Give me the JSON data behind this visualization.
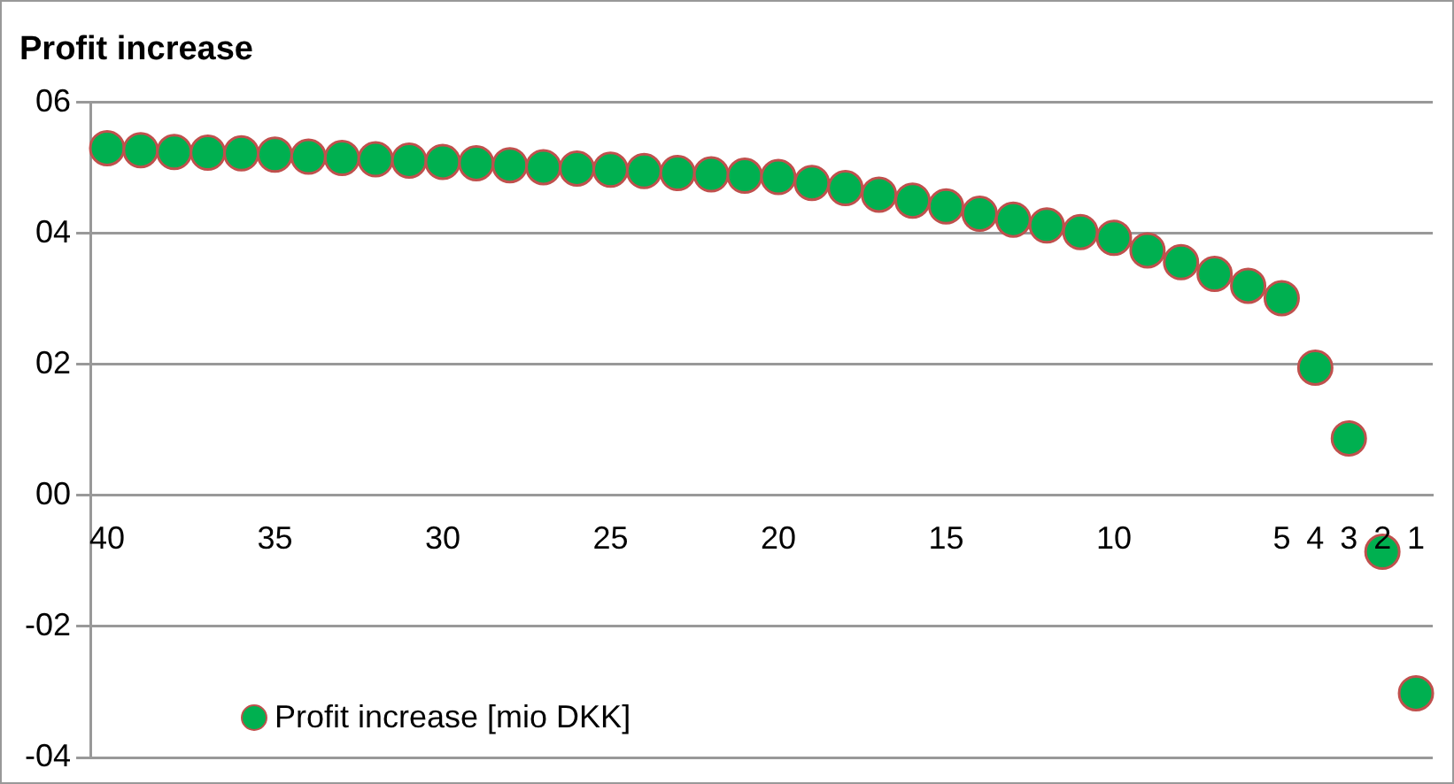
{
  "chart_data": {
    "type": "scatter",
    "title": "Profit increase",
    "categories": [
      "40",
      null,
      null,
      null,
      null,
      "35",
      null,
      null,
      null,
      null,
      "30",
      null,
      null,
      null,
      null,
      "25",
      null,
      null,
      null,
      null,
      "20",
      null,
      null,
      null,
      null,
      "15",
      null,
      null,
      null,
      null,
      "10",
      null,
      null,
      null,
      null,
      "5",
      "4",
      "3",
      "2",
      "1"
    ],
    "series": [
      {
        "name": "Profit increase [mio DKK]",
        "color": "#00b050",
        "values": [
          5.3,
          5.27,
          5.24,
          5.23,
          5.22,
          5.2,
          5.17,
          5.15,
          5.13,
          5.11,
          5.09,
          5.07,
          5.04,
          5.01,
          4.99,
          4.97,
          4.95,
          4.92,
          4.9,
          4.88,
          4.86,
          4.77,
          4.69,
          4.59,
          4.5,
          4.41,
          4.3,
          4.21,
          4.12,
          4.02,
          3.93,
          3.74,
          3.56,
          3.38,
          3.2,
          3.01,
          1.95,
          0.87,
          -0.86,
          -3.02
        ]
      }
    ],
    "ylim": [
      -4,
      6
    ],
    "yticks": [
      {
        "value": -4,
        "label": "-04"
      },
      {
        "value": -2,
        "label": "-02"
      },
      {
        "value": 0,
        "label": "00"
      },
      {
        "value": 2,
        "label": "02"
      },
      {
        "value": 4,
        "label": "04"
      },
      {
        "value": 6,
        "label": "06"
      }
    ],
    "grid": "y",
    "legend": "bottom left",
    "marker": "circle"
  }
}
